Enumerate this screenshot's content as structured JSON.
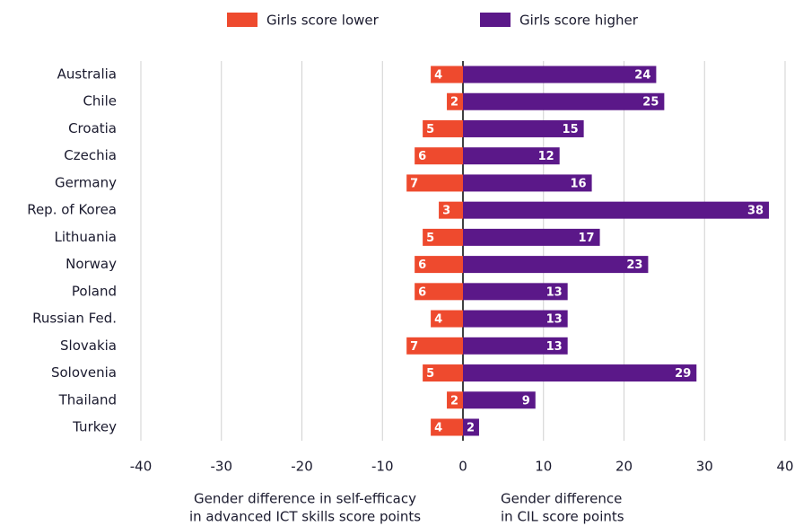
{
  "chart_data": {
    "type": "diverging_bar",
    "categories": [
      "Australia",
      "Chile",
      "Croatia",
      "Czechia",
      "Germany",
      "Rep. of Korea",
      "Lithuania",
      "Norway",
      "Poland",
      "Russian Fed.",
      "Slovakia",
      "Solovenia",
      "Thailand",
      "Turkey"
    ],
    "series": [
      {
        "name": "Girls score lower",
        "color": "#ee4a2e",
        "values": [
          -4,
          -2,
          -5,
          -6,
          -7,
          -3,
          -5,
          -6,
          -6,
          -4,
          -7,
          -5,
          -2,
          -4
        ],
        "value_labels": [
          "4",
          "2",
          "5",
          "6",
          "7",
          "3",
          "5",
          "6",
          "6",
          "4",
          "7",
          "5",
          "2",
          "4"
        ]
      },
      {
        "name": "Girls score higher",
        "color": "#5b1889",
        "values": [
          24,
          25,
          15,
          12,
          16,
          38,
          17,
          23,
          13,
          13,
          13,
          29,
          9,
          2
        ]
      }
    ],
    "xlim": [
      -40,
      40
    ],
    "xticks": [
      -40,
      -30,
      -20,
      -10,
      0,
      10,
      20,
      30,
      40
    ],
    "grid": true,
    "x_label_left": [
      "Gender difference in self-efficacy",
      "in advanced ICT skills score points"
    ],
    "x_label_right": [
      "Gender difference",
      "in CIL score points"
    ]
  }
}
